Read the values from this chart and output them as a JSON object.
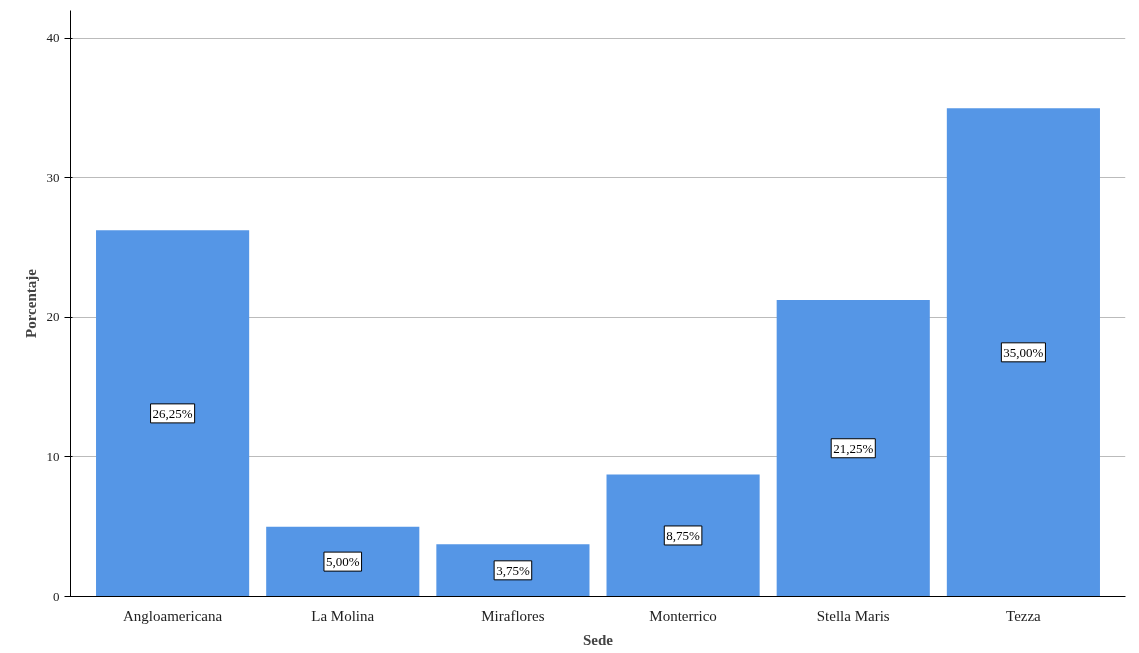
{
  "chart_data": {
    "type": "bar",
    "xlabel": "Sede",
    "ylabel": "Porcentaje",
    "categories": [
      "Angloamericana",
      "La Molina",
      "Miraflores",
      "Monterrico",
      "Stella Maris",
      "Tezza"
    ],
    "values": [
      26.25,
      5,
      3.75,
      8.75,
      21.25,
      35
    ],
    "value_labels": [
      "26,25%",
      "5,00%",
      "3,75%",
      "8,75%",
      "21,25%",
      "35,00%"
    ],
    "color": "#5596e6",
    "ylim": [
      0,
      42
    ],
    "yticks": [
      0,
      10,
      20,
      30,
      40
    ],
    "grid": "y"
  }
}
